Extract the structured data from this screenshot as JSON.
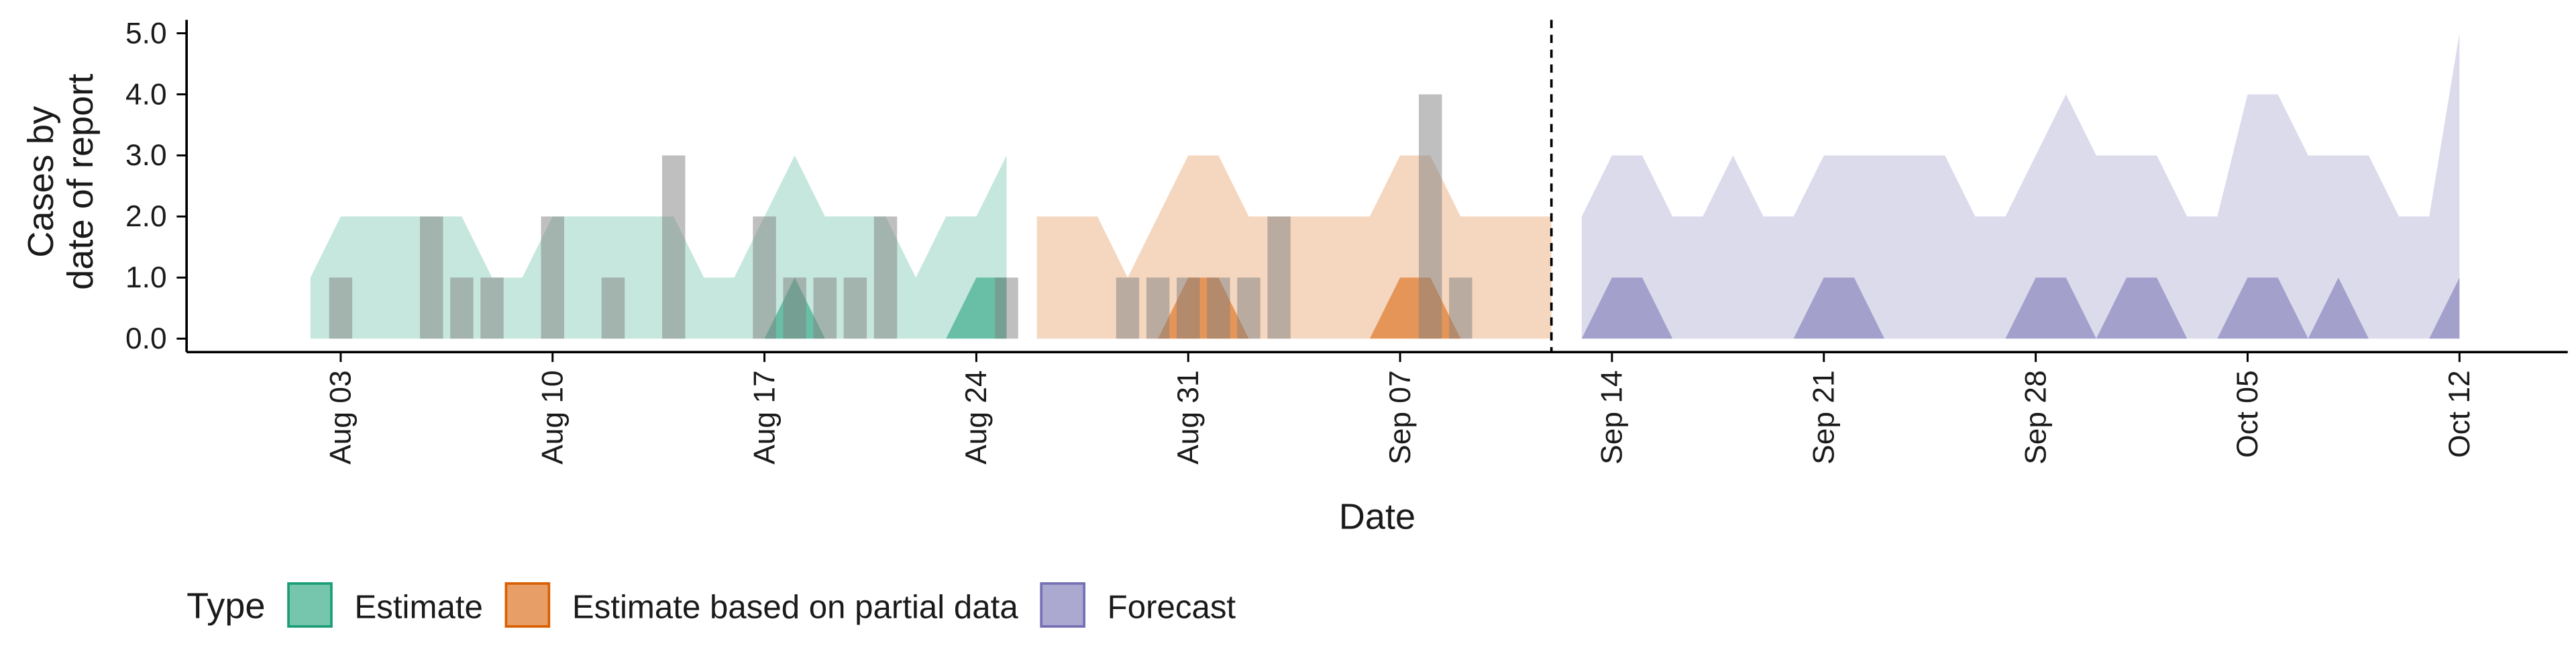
{
  "chart_data": {
    "type": "area",
    "x_label": "Date",
    "y_label": [
      "Cases by",
      "date of report"
    ],
    "legend_title": "Type",
    "legend": "bottom",
    "x": [
      "Aug 02",
      "Aug 03",
      "Aug 04",
      "Aug 05",
      "Aug 06",
      "Aug 07",
      "Aug 08",
      "Aug 09",
      "Aug 10",
      "Aug 11",
      "Aug 12",
      "Aug 13",
      "Aug 14",
      "Aug 15",
      "Aug 16",
      "Aug 17",
      "Aug 18",
      "Aug 19",
      "Aug 20",
      "Aug 21",
      "Aug 22",
      "Aug 23",
      "Aug 24",
      "Aug 25",
      "Aug 26",
      "Aug 27",
      "Aug 28",
      "Aug 29",
      "Aug 30",
      "Aug 31",
      "Sep 01",
      "Sep 02",
      "Sep 03",
      "Sep 04",
      "Sep 05",
      "Sep 06",
      "Sep 07",
      "Sep 08",
      "Sep 09",
      "Sep 10",
      "Sep 11",
      "Sep 12",
      "Sep 13",
      "Sep 14",
      "Sep 15",
      "Sep 16",
      "Sep 17",
      "Sep 18",
      "Sep 19",
      "Sep 20",
      "Sep 21",
      "Sep 22",
      "Sep 23",
      "Sep 24",
      "Sep 25",
      "Sep 26",
      "Sep 27",
      "Sep 28",
      "Sep 29",
      "Sep 30",
      "Oct 01",
      "Oct 02",
      "Oct 03",
      "Oct 04",
      "Oct 05",
      "Oct 06",
      "Oct 07",
      "Oct 08",
      "Oct 09",
      "Oct 10",
      "Oct 11",
      "Oct 12"
    ],
    "xticks": [
      "Aug 03",
      "Aug 10",
      "Aug 17",
      "Aug 24",
      "Aug 31",
      "Sep 07",
      "Sep 14",
      "Sep 21",
      "Sep 28",
      "Oct 05",
      "Oct 12"
    ],
    "vline": "Sep 12",
    "ylim": [
      -0.22,
      5.22
    ],
    "yticks": [
      {
        "value": 0,
        "label": "0.0"
      },
      {
        "value": 1,
        "label": "1.0"
      },
      {
        "value": 2,
        "label": "2.0"
      },
      {
        "value": 3,
        "label": "3.0"
      },
      {
        "value": 4,
        "label": "4.0"
      },
      {
        "value": 5,
        "label": "5.0"
      }
    ],
    "observed": {
      "color": "#808080",
      "values": [
        0,
        1,
        0,
        0,
        2,
        1,
        1,
        0,
        2,
        0,
        1,
        0,
        3,
        0,
        0,
        2,
        1,
        1,
        1,
        2,
        0,
        0,
        0,
        1,
        0,
        0,
        0,
        1,
        1,
        1,
        1,
        1,
        2,
        0,
        0,
        0,
        0,
        4,
        1,
        null,
        null,
        null,
        null,
        null,
        null,
        null,
        null,
        null,
        null,
        null,
        null,
        null,
        null,
        null,
        null,
        null,
        null,
        null,
        null,
        null,
        null,
        null,
        null,
        null,
        null,
        null,
        null,
        null,
        null,
        null,
        null,
        null
      ]
    },
    "series": [
      {
        "name": "Estimate",
        "color": "#1b9e77",
        "values": [
          1,
          2,
          2,
          2,
          2,
          2,
          1,
          1,
          2,
          2,
          2,
          2,
          2,
          1,
          1,
          2,
          3,
          2,
          2,
          2,
          1,
          2,
          2,
          3,
          null,
          null,
          null,
          null,
          null,
          null,
          null,
          null,
          null,
          null,
          null,
          null,
          null,
          null,
          null,
          null,
          null,
          null,
          null,
          null,
          null,
          null,
          null,
          null,
          null,
          null,
          null,
          null,
          null,
          null,
          null,
          null,
          null,
          null,
          null,
          null,
          null,
          null,
          null,
          null,
          null,
          null,
          null,
          null,
          null,
          null,
          null,
          null
        ],
        "inner": [
          0,
          0,
          0,
          0,
          0,
          0,
          0,
          0,
          0,
          0,
          0,
          0,
          0,
          0,
          0,
          0,
          1,
          0,
          0,
          0,
          0,
          0,
          1,
          1,
          null,
          null,
          null,
          null,
          null,
          null,
          null,
          null,
          null,
          null,
          null,
          null,
          null,
          null,
          null,
          null,
          null,
          null,
          null,
          null,
          null,
          null,
          null,
          null,
          null,
          null,
          null,
          null,
          null,
          null,
          null,
          null,
          null,
          null,
          null,
          null,
          null,
          null,
          null,
          null,
          null,
          null,
          null,
          null,
          null,
          null,
          null,
          null
        ]
      },
      {
        "name": "Estimate based on partial data",
        "color": "#d95f02",
        "values": [
          null,
          null,
          null,
          null,
          null,
          null,
          null,
          null,
          null,
          null,
          null,
          null,
          null,
          null,
          null,
          null,
          null,
          null,
          null,
          null,
          null,
          null,
          null,
          null,
          2,
          2,
          2,
          1,
          2,
          3,
          3,
          2,
          2,
          2,
          2,
          2,
          3,
          3,
          2,
          2,
          2,
          2,
          null,
          null,
          null,
          null,
          null,
          null,
          null,
          null,
          null,
          null,
          null,
          null,
          null,
          null,
          null,
          null,
          null,
          null,
          null,
          null,
          null,
          null,
          null,
          null,
          null,
          null,
          null,
          null,
          null,
          null
        ],
        "inner": [
          null,
          null,
          null,
          null,
          null,
          null,
          null,
          null,
          null,
          null,
          null,
          null,
          null,
          null,
          null,
          null,
          null,
          null,
          null,
          null,
          null,
          null,
          null,
          null,
          0,
          0,
          0,
          0,
          0,
          1,
          1,
          0,
          0,
          0,
          0,
          0,
          1,
          1,
          0,
          0,
          0,
          0,
          null,
          null,
          null,
          null,
          null,
          null,
          null,
          null,
          null,
          null,
          null,
          null,
          null,
          null,
          null,
          null,
          null,
          null,
          null,
          null,
          null,
          null,
          null,
          null,
          null,
          null,
          null,
          null,
          null,
          null
        ]
      },
      {
        "name": "Forecast",
        "color": "#7570b3",
        "values": [
          null,
          null,
          null,
          null,
          null,
          null,
          null,
          null,
          null,
          null,
          null,
          null,
          null,
          null,
          null,
          null,
          null,
          null,
          null,
          null,
          null,
          null,
          null,
          null,
          null,
          null,
          null,
          null,
          null,
          null,
          null,
          null,
          null,
          null,
          null,
          null,
          null,
          null,
          null,
          null,
          null,
          null,
          2,
          3,
          3,
          2,
          2,
          3,
          2,
          2,
          3,
          3,
          3,
          3,
          3,
          2,
          2,
          3,
          4,
          3,
          3,
          3,
          2,
          2,
          4,
          4,
          3,
          3,
          3,
          2,
          2,
          5
        ],
        "inner": [
          null,
          null,
          null,
          null,
          null,
          null,
          null,
          null,
          null,
          null,
          null,
          null,
          null,
          null,
          null,
          null,
          null,
          null,
          null,
          null,
          null,
          null,
          null,
          null,
          null,
          null,
          null,
          null,
          null,
          null,
          null,
          null,
          null,
          null,
          null,
          null,
          null,
          null,
          null,
          null,
          null,
          null,
          0,
          1,
          1,
          0,
          0,
          0,
          0,
          0,
          1,
          1,
          0,
          0,
          0,
          0,
          0,
          1,
          1,
          0,
          1,
          1,
          0,
          0,
          1,
          1,
          0,
          1,
          0,
          0,
          0,
          1
        ]
      }
    ]
  }
}
